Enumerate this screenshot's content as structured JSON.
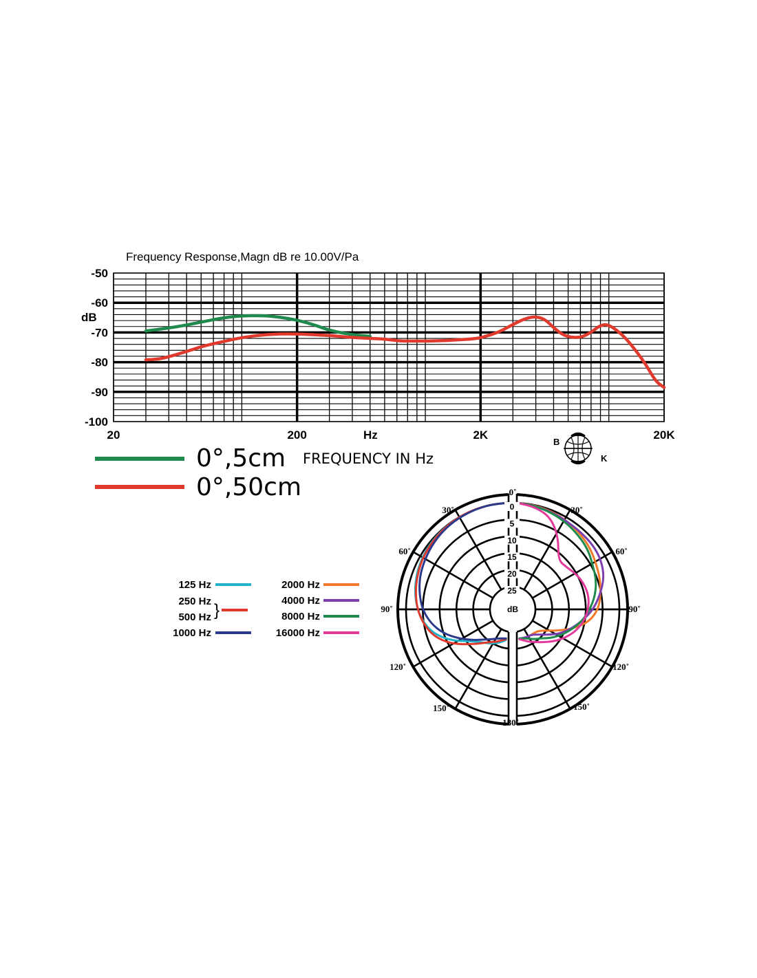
{
  "chart_data": [
    {
      "type": "line",
      "title": "Frequency Response,Magn dB re 10.00V/Pa",
      "ylabel": "dB",
      "xlabel": "FREQUENCY IN Hz",
      "x_unit_label": "Hz",
      "x_scale": "log",
      "xlim": [
        20,
        20000
      ],
      "ylim": [
        -100,
        -50
      ],
      "x_ticks": [
        {
          "value": 20,
          "label": "20"
        },
        {
          "value": 200,
          "label": "200"
        },
        {
          "value": 2000,
          "label": "2K"
        },
        {
          "value": 20000,
          "label": "20K"
        }
      ],
      "y_ticks": [
        {
          "value": -50,
          "label": "-50"
        },
        {
          "value": -60,
          "label": "-60"
        },
        {
          "value": -70,
          "label": "-70"
        },
        {
          "value": -80,
          "label": "-80"
        },
        {
          "value": -90,
          "label": "-90"
        },
        {
          "value": -100,
          "label": "-100"
        }
      ],
      "grid": true,
      "series": [
        {
          "name": "0°,5cm",
          "color": "#1f8a4c",
          "x": [
            30,
            40,
            50,
            60,
            80,
            100,
            130,
            160,
            200,
            250,
            300,
            400,
            500
          ],
          "y": [
            -69.5,
            -68.5,
            -67.5,
            -66.5,
            -65,
            -64.4,
            -64.3,
            -64.8,
            -65.8,
            -67.5,
            -69.3,
            -70.8,
            -71.3
          ]
        },
        {
          "name": "0°,50cm",
          "color": "#e03a2e",
          "x": [
            30,
            35,
            40,
            50,
            60,
            70,
            80,
            100,
            130,
            160,
            200,
            300,
            400,
            500,
            600,
            700,
            800,
            1000,
            1200,
            1500,
            1800,
            2000,
            2500,
            3000,
            3500,
            4000,
            4500,
            5000,
            5500,
            6000,
            7000,
            8000,
            9000,
            10000,
            12000,
            14000,
            16000,
            18000,
            20000
          ],
          "y": [
            -79.2,
            -79,
            -78.2,
            -76.4,
            -74.8,
            -73.8,
            -73,
            -71.7,
            -70.8,
            -70.5,
            -70.5,
            -71,
            -71.7,
            -72,
            -72.2,
            -72.8,
            -72.9,
            -72.9,
            -72.8,
            -72.5,
            -72.2,
            -71.8,
            -70,
            -67.3,
            -65.3,
            -64.6,
            -65.6,
            -68.4,
            -70.4,
            -71.5,
            -71.8,
            -70,
            -67.5,
            -67.3,
            -71,
            -76,
            -81,
            -86.5,
            -88.5
          ]
        }
      ]
    },
    {
      "type": "polar",
      "r_label": "dB",
      "r_ticks": [
        "0",
        "5",
        "10",
        "15",
        "20",
        "25"
      ],
      "r_range": [
        0,
        25
      ],
      "angle_ticks": [
        "0˚",
        "30˚",
        "60˚",
        "90˚",
        "120˚",
        "150˚",
        "180˚",
        "150˚",
        "120˚",
        "90˚",
        "60˚",
        "30˚"
      ],
      "left_series_angles_deg": [
        0,
        10,
        20,
        30,
        40,
        50,
        60,
        70,
        80,
        90,
        100,
        110,
        120,
        130,
        140,
        150,
        160,
        170,
        180
      ],
      "right_series_angles_deg": [
        0,
        10,
        20,
        30,
        40,
        50,
        60,
        70,
        80,
        90,
        100,
        110,
        120,
        130,
        140,
        150,
        160,
        170,
        180
      ],
      "series": [
        {
          "name": "125 Hz",
          "color": "#22b3c9",
          "side": "left",
          "db": [
            0,
            0.1,
            0.3,
            0.6,
            0.9,
            1.3,
            1.8,
            2.5,
            3.4,
            4.6,
            6.3,
            9,
            13,
            17,
            19,
            20,
            21,
            22,
            23
          ]
        },
        {
          "name": "250 Hz",
          "color": "#e03a2e",
          "side": "left",
          "db": [
            0,
            0.1,
            0.3,
            0.6,
            1,
            1.5,
            2,
            2.8,
            3.6,
            4.6,
            6.1,
            8.2,
            11.5,
            15.5,
            18.5,
            20.5,
            21.5,
            22.5,
            23
          ]
        },
        {
          "name": "1000 Hz",
          "color": "#2d3a8c",
          "side": "left",
          "db": [
            0,
            0.1,
            0.4,
            0.8,
            1.3,
            2,
            2.8,
            3.6,
            4.8,
            6.1,
            8.2,
            11,
            14.5,
            17.5,
            20,
            21.5,
            22.5,
            23,
            23
          ]
        },
        {
          "name": "2000 Hz",
          "color": "#f07a2a",
          "side": "right",
          "db": [
            0,
            0.3,
            0.8,
            1.5,
            2.4,
            3.3,
            4.5,
            5.4,
            6.4,
            7.5,
            10,
            14.5,
            19,
            22,
            23,
            23,
            23,
            23,
            23
          ]
        },
        {
          "name": "4000 Hz",
          "color": "#7b3fb0",
          "side": "right",
          "db": [
            0,
            0.4,
            1,
            1.6,
            1.9,
            2.1,
            2.7,
            4.1,
            6.6,
            9,
            12,
            14.7,
            17.2,
            20,
            22,
            23,
            23,
            23,
            23
          ]
        },
        {
          "name": "8000 Hz",
          "color": "#1f8a4c",
          "side": "right",
          "db": [
            0,
            0.5,
            1.2,
            2.1,
            3.1,
            4.1,
            5.6,
            6.6,
            8.1,
            10,
            12,
            14.3,
            16.5,
            18.5,
            20.5,
            21.5,
            22.5,
            23,
            23
          ]
        },
        {
          "name": "16000 Hz",
          "color": "#e23a9a",
          "side": "right",
          "db": [
            0,
            0.8,
            2.5,
            7,
            12.6,
            12.3,
            11.1,
            10.3,
            10,
            10.5,
            11.5,
            13,
            15,
            17,
            19,
            20.5,
            21.5,
            22.5,
            23
          ]
        }
      ]
    }
  ],
  "legend_line": {
    "series_a": "0°,5cm",
    "series_b": "0°,50cm"
  },
  "polar_legend": {
    "items": [
      {
        "label": "125 Hz",
        "color": "#22b3c9"
      },
      {
        "label": "250 Hz",
        "color": "#e03a2e"
      },
      {
        "label": "500 Hz",
        "color": "#e03a2e"
      },
      {
        "label": "1000 Hz",
        "color": "#2d3a8c"
      },
      {
        "label": "2000 Hz",
        "color": "#f07a2a"
      },
      {
        "label": "4000 Hz",
        "color": "#7b3fb0"
      },
      {
        "label": "8000 Hz",
        "color": "#1f8a4c"
      },
      {
        "label": "16000 Hz",
        "color": "#e23a9a"
      }
    ],
    "brace": "}"
  },
  "logo": {
    "letter_b": "B",
    "letter_k": "K",
    "icon": "omni-microphone-symbol-icon"
  }
}
